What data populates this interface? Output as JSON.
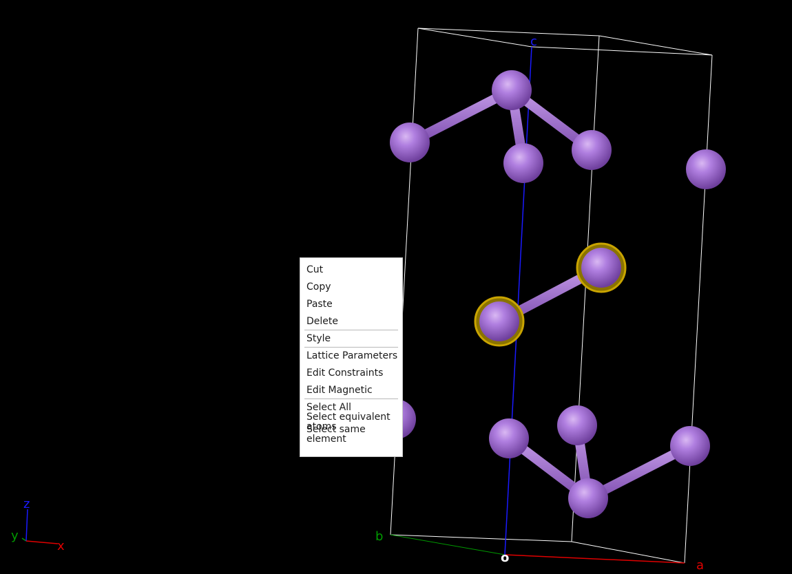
{
  "viewer": {
    "background": "#000000",
    "atom_color": "#a56fd6",
    "bond_color": "#a56fd6",
    "selection_ring_color": "#c9a400",
    "cell_edge_color": "#ffffff"
  },
  "cell_axes": {
    "a_label": "a",
    "b_label": "b",
    "c_label": "c",
    "origin_label": "o",
    "a_color": "#e00000",
    "b_color": "#009a00",
    "c_color": "#1a1aff"
  },
  "orientation_triad": {
    "x_label": "x",
    "y_label": "y",
    "z_label": "z"
  },
  "context_menu": {
    "cut": "Cut",
    "copy": "Copy",
    "paste": "Paste",
    "delete": "Delete",
    "style": "Style",
    "lattice_parameters": "Lattice Parameters",
    "edit_constraints": "Edit Constraints",
    "edit_magnetic": "Edit Magnetic",
    "select_all": "Select All",
    "select_equivalent_atoms": "Select equivalent atoms",
    "select_same_element": "Select same element"
  }
}
